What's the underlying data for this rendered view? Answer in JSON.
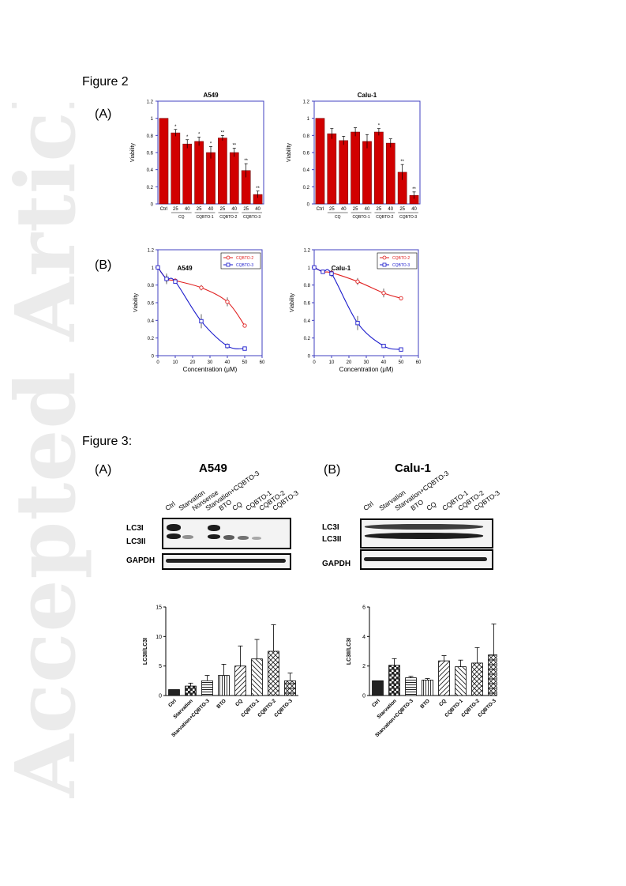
{
  "watermark": "Accepted Article",
  "figure2": {
    "title": "Figure  2",
    "panel_a_label": "(A)",
    "panel_b_label": "(B)"
  },
  "figure3": {
    "title": "Figure  3:",
    "panel_a_label": "(A)",
    "panel_b_label": "(B)",
    "a549_title": "A549",
    "calu_title": "Calu-1",
    "band_lc3i": "LC3I",
    "band_lc3ii": "LC3II",
    "band_gapdh": "GAPDH",
    "a549_lanes": [
      "Ctrl",
      "Starvation",
      "Nonsense",
      "Starvation+CQBTO-3",
      "BTO",
      "CQ",
      "CQBTO-1",
      "CQBTO-2",
      "CQBTO-3"
    ],
    "calu_lanes": [
      "Ctrl",
      "Starvation",
      "Starvation+CQBTO-3",
      "BTO",
      "CQ",
      "CQBTO-1",
      "CQBTO-2",
      "CQBTO-3"
    ]
  },
  "chart_data": [
    {
      "id": "fig2a-a549",
      "type": "bar",
      "title": "A549",
      "ylabel": "Viability",
      "ylim": [
        0,
        1.2
      ],
      "yticks": [
        "0",
        "0.2",
        "0.4",
        "0.6",
        "0.8",
        "1",
        "1.2"
      ],
      "categories": [
        "Ctrl",
        "25",
        "40",
        "25",
        "40",
        "25",
        "40",
        "25",
        "40"
      ],
      "groups": [
        "CQ",
        "CQBTO-1",
        "CQBTO-2",
        "CQBTO-3"
      ],
      "values": [
        1.0,
        0.83,
        0.7,
        0.73,
        0.6,
        0.77,
        0.6,
        0.39,
        0.11
      ],
      "errors": [
        0.0,
        0.04,
        0.05,
        0.05,
        0.07,
        0.03,
        0.05,
        0.08,
        0.04
      ],
      "annotations": [
        "",
        "*",
        "*",
        "*",
        "*",
        "**",
        "**",
        "**",
        "**"
      ],
      "color": "#d10000"
    },
    {
      "id": "fig2a-calu1",
      "type": "bar",
      "title": "Calu-1",
      "ylabel": "Viability",
      "ylim": [
        0,
        1.2
      ],
      "yticks": [
        "0",
        "0.2",
        "0.4",
        "0.6",
        "0.8",
        "1",
        "1.2"
      ],
      "categories": [
        "Ctrl",
        "25",
        "40",
        "25",
        "40",
        "25",
        "40",
        "25",
        "40"
      ],
      "groups": [
        "CQ",
        "CQBTO-1",
        "CQBTO-2",
        "CQBTO-3"
      ],
      "values": [
        1.0,
        0.82,
        0.74,
        0.84,
        0.73,
        0.84,
        0.71,
        0.37,
        0.1
      ],
      "errors": [
        0.0,
        0.06,
        0.05,
        0.05,
        0.08,
        0.04,
        0.05,
        0.09,
        0.04
      ],
      "annotations": [
        "",
        "",
        "",
        "",
        "",
        "*",
        "",
        "**",
        "**"
      ],
      "color": "#d10000"
    },
    {
      "id": "fig2b-a549",
      "type": "line",
      "title": "A549",
      "xlabel": "Concentration (μM)",
      "ylabel": "Viability",
      "xlim": [
        0,
        60
      ],
      "ylim": [
        0,
        1.2
      ],
      "xticks": [
        "0",
        "10",
        "20",
        "30",
        "40",
        "50",
        "60"
      ],
      "yticks": [
        "0",
        "0.2",
        "0.4",
        "0.6",
        "0.8",
        "1",
        "1.2"
      ],
      "legend": "top-right",
      "series": [
        {
          "name": "CQBTO-2",
          "color": "#e02020",
          "marker": "circle",
          "x": [
            0,
            5,
            10,
            25,
            40,
            50
          ],
          "y": [
            1.0,
            0.87,
            0.85,
            0.77,
            0.61,
            0.34
          ],
          "err": [
            0.0,
            0.04,
            0.02,
            0.03,
            0.05,
            0.02
          ]
        },
        {
          "name": "CQBTO-3",
          "color": "#1a1acc",
          "marker": "square",
          "x": [
            0,
            5,
            10,
            25,
            40,
            50
          ],
          "y": [
            1.0,
            0.87,
            0.84,
            0.39,
            0.11,
            0.08
          ],
          "err": [
            0.0,
            0.06,
            0.02,
            0.08,
            0.03,
            0.02
          ]
        }
      ]
    },
    {
      "id": "fig2b-calu1",
      "type": "line",
      "title": "Calu-1",
      "xlabel": "Concentration (μM)",
      "ylabel": "Viability",
      "xlim": [
        0,
        60
      ],
      "ylim": [
        0,
        1.2
      ],
      "xticks": [
        "0",
        "10",
        "20",
        "30",
        "40",
        "50",
        "60"
      ],
      "yticks": [
        "0",
        "0.2",
        "0.4",
        "0.6",
        "0.8",
        "1",
        "1.2"
      ],
      "legend": "top-right",
      "series": [
        {
          "name": "CQBTO-2",
          "color": "#e02020",
          "marker": "circle",
          "x": [
            0,
            5,
            10,
            25,
            40,
            50
          ],
          "y": [
            1.0,
            0.95,
            0.94,
            0.84,
            0.71,
            0.65
          ],
          "err": [
            0.0,
            0.02,
            0.03,
            0.04,
            0.05,
            0.01
          ]
        },
        {
          "name": "CQBTO-3",
          "color": "#1a1acc",
          "marker": "square",
          "x": [
            0,
            5,
            10,
            25,
            40,
            50
          ],
          "y": [
            1.0,
            0.95,
            0.93,
            0.37,
            0.11,
            0.07
          ],
          "err": [
            0.0,
            0.02,
            0.04,
            0.08,
            0.02,
            0.01
          ]
        }
      ]
    },
    {
      "id": "fig3-a549-ratio",
      "type": "bar",
      "ylabel": "LC3II/LC3I",
      "ylim": [
        0,
        15
      ],
      "yticks": [
        "0",
        "5",
        "10",
        "15"
      ],
      "categories": [
        "Ctrl",
        "Starvation",
        "Starvation+CQBTO-3",
        "BTO",
        "CQ",
        "CQBTO-1",
        "CQBTO-2",
        "CQBTO-3"
      ],
      "values": [
        1.0,
        1.6,
        2.5,
        3.4,
        5.0,
        6.2,
        7.5,
        2.5
      ],
      "errors": [
        0.0,
        0.5,
        0.9,
        1.9,
        3.4,
        3.3,
        4.5,
        1.3
      ],
      "color": "#ffffff"
    },
    {
      "id": "fig3-calu1-ratio",
      "type": "bar",
      "ylabel": "LC3II/LC3I",
      "ylim": [
        0,
        6
      ],
      "yticks": [
        "0",
        "2",
        "4",
        "6"
      ],
      "categories": [
        "Ctrl",
        "Starvation",
        "Starvation+CQBTO-3",
        "BTO",
        "CQ",
        "CQBTO-1",
        "CQBTO-2",
        "CQBTO-3"
      ],
      "values": [
        1.0,
        2.05,
        1.2,
        1.05,
        2.35,
        1.95,
        2.2,
        2.75
      ],
      "errors": [
        0.0,
        0.45,
        0.1,
        0.1,
        0.35,
        0.45,
        1.05,
        2.1
      ],
      "color": "#ffffff"
    }
  ]
}
